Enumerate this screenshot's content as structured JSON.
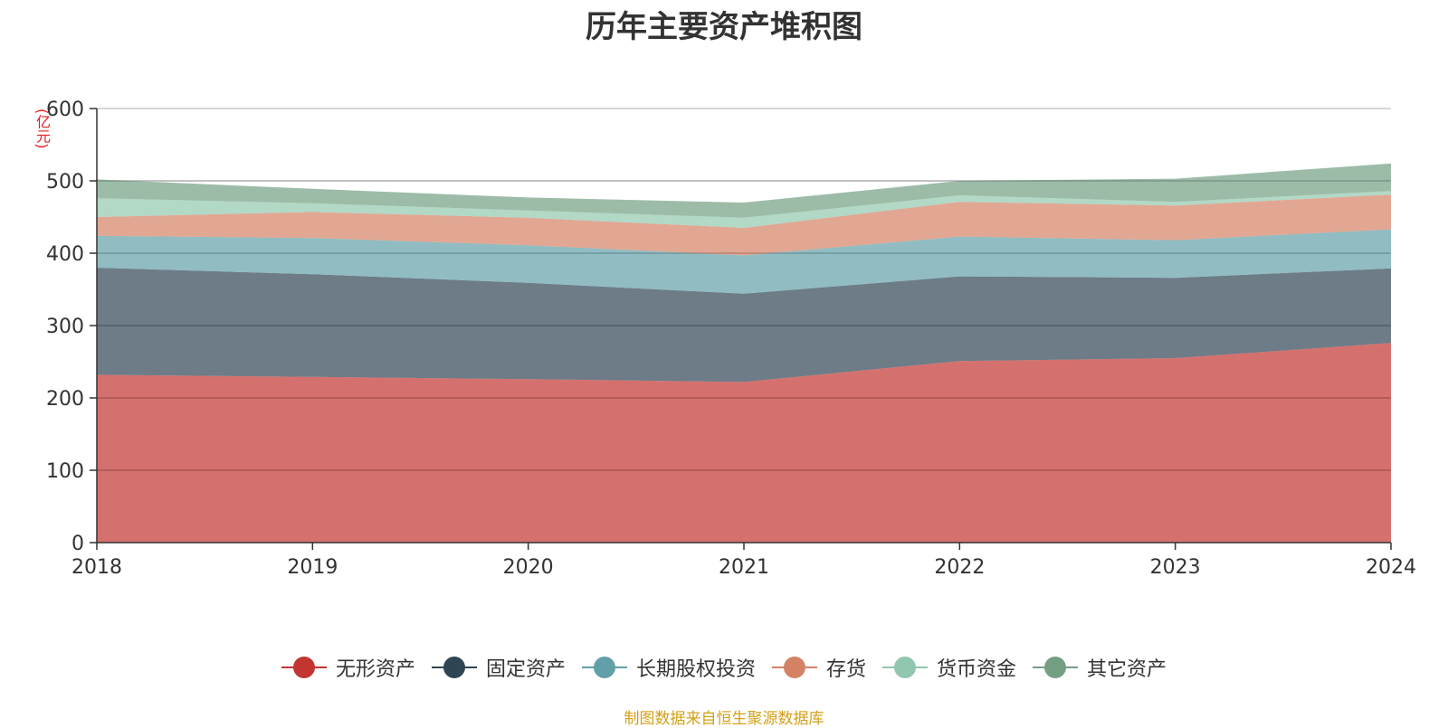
{
  "chart_data": {
    "type": "area",
    "stacked": true,
    "title": "历年主要资产堆积图",
    "ylabel": "(亿元)",
    "xlabel": "",
    "categories": [
      "2018",
      "2019",
      "2020",
      "2021",
      "2022",
      "2023",
      "2024"
    ],
    "ylim": [
      0,
      600
    ],
    "yticks": [
      0,
      100,
      200,
      300,
      400,
      500,
      600
    ],
    "grid": true,
    "legend_position": "bottom",
    "series": [
      {
        "name": "无形资产",
        "color": "#c23531",
        "values": [
          232,
          229,
          226,
          222,
          251,
          255,
          276
        ]
      },
      {
        "name": "固定资产",
        "color": "#2f4554",
        "values": [
          148,
          142,
          133,
          122,
          117,
          111,
          103
        ]
      },
      {
        "name": "长期股权投资",
        "color": "#61a0a8",
        "values": [
          44,
          50,
          52,
          53,
          55,
          52,
          54
        ]
      },
      {
        "name": "存货",
        "color": "#d48265",
        "values": [
          26,
          36,
          38,
          38,
          48,
          48,
          48
        ]
      },
      {
        "name": "货币资金",
        "color": "#91c7ae",
        "values": [
          26,
          12,
          10,
          14,
          9,
          5,
          5
        ]
      },
      {
        "name": "其它资产",
        "color": "#749f83",
        "values": [
          26,
          20,
          18,
          21,
          20,
          32,
          38
        ]
      }
    ]
  },
  "footer": {
    "source": "制图数据来自恒生聚源数据库"
  }
}
